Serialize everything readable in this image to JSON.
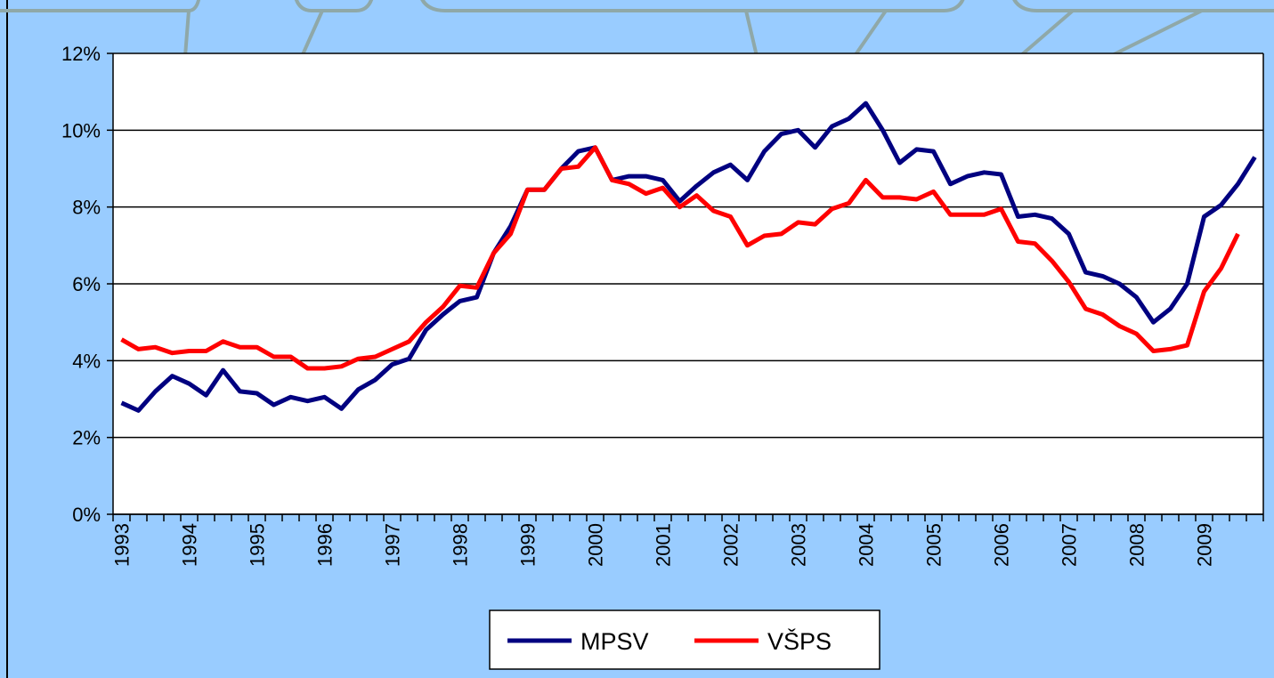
{
  "chart_data": {
    "type": "line",
    "categories": [
      "1993",
      null,
      null,
      null,
      "1994",
      null,
      null,
      null,
      "1995",
      null,
      null,
      null,
      "1996",
      null,
      null,
      null,
      "1997",
      null,
      null,
      null,
      "1998",
      null,
      null,
      null,
      "1999",
      null,
      null,
      null,
      "2000",
      null,
      null,
      null,
      "2001",
      null,
      null,
      null,
      "2002",
      null,
      null,
      null,
      "2003",
      null,
      null,
      null,
      "2004",
      null,
      null,
      null,
      "2005",
      null,
      null,
      null,
      "2006",
      null,
      null,
      null,
      "2007",
      null,
      null,
      null,
      "2008",
      null,
      null,
      null,
      "2009",
      null,
      null,
      null
    ],
    "series": [
      {
        "name": "MPSV",
        "color": "#000080",
        "values": [
          2.9,
          2.7,
          3.2,
          3.6,
          3.4,
          3.1,
          3.75,
          3.2,
          3.15,
          2.85,
          3.05,
          2.95,
          3.05,
          2.75,
          3.25,
          3.5,
          3.9,
          4.05,
          4.8,
          5.2,
          5.55,
          5.65,
          6.8,
          7.5,
          8.45,
          8.45,
          9.0,
          9.45,
          9.55,
          8.7,
          8.8,
          8.8,
          8.7,
          8.15,
          8.55,
          8.9,
          9.1,
          8.7,
          9.45,
          9.9,
          10.0,
          9.55,
          10.1,
          10.3,
          10.7,
          10.0,
          9.15,
          9.5,
          9.45,
          8.6,
          8.8,
          8.9,
          8.85,
          7.75,
          7.8,
          7.7,
          7.3,
          6.3,
          6.2,
          6.0,
          5.65,
          5.0,
          5.35,
          6.0,
          7.75,
          8.05,
          8.6,
          9.3
        ]
      },
      {
        "name": "VŠPS",
        "color": "#ff0000",
        "values": [
          4.55,
          4.3,
          4.35,
          4.2,
          4.25,
          4.25,
          4.5,
          4.35,
          4.35,
          4.1,
          4.1,
          3.8,
          3.8,
          3.85,
          4.05,
          4.1,
          4.3,
          4.5,
          5.0,
          5.4,
          5.95,
          5.9,
          6.8,
          7.3,
          8.45,
          8.45,
          9.0,
          9.05,
          9.55,
          8.7,
          8.6,
          8.35,
          8.5,
          8.0,
          8.3,
          7.9,
          7.75,
          7.0,
          7.25,
          7.3,
          7.6,
          7.55,
          7.95,
          8.1,
          8.7,
          8.25,
          8.25,
          8.2,
          8.4,
          7.8,
          7.8,
          7.8,
          7.95,
          7.1,
          7.05,
          6.6,
          6.05,
          5.35,
          5.2,
          4.9,
          4.7,
          4.25,
          4.3,
          4.4,
          5.8,
          6.4,
          7.3,
          null
        ]
      }
    ],
    "ylim": [
      0,
      12
    ],
    "yticks": [
      {
        "value": 0,
        "label": "0%"
      },
      {
        "value": 2,
        "label": "2%"
      },
      {
        "value": 4,
        "label": "4%"
      },
      {
        "value": 6,
        "label": "6%"
      },
      {
        "value": 8,
        "label": "8%"
      },
      {
        "value": 10,
        "label": "10%"
      },
      {
        "value": 12,
        "label": "12%"
      }
    ],
    "grid": true,
    "legend": "bottom"
  }
}
